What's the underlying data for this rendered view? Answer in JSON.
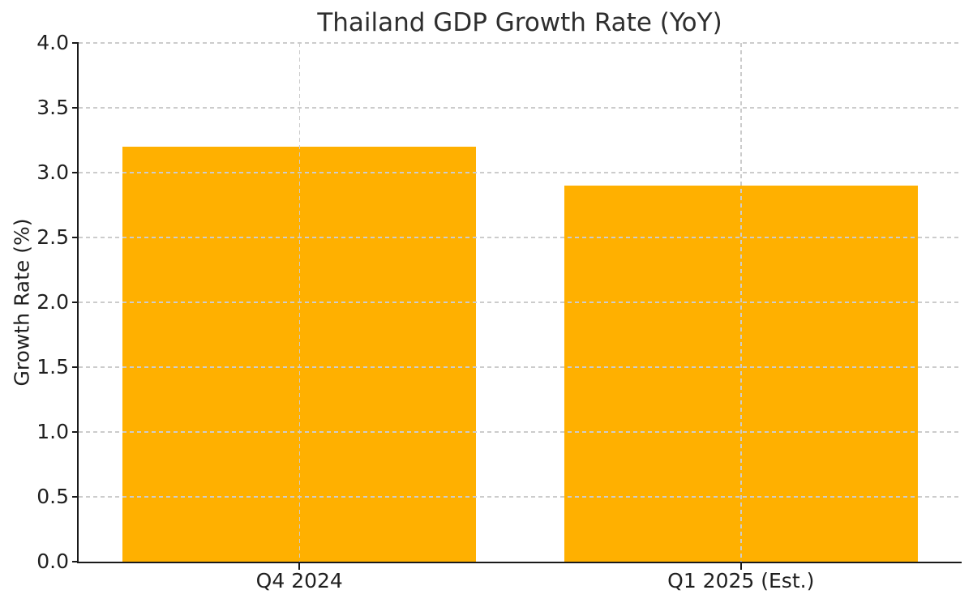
{
  "title": "Thailand GDP Growth Rate (YoY)",
  "chart_data": {
    "type": "bar",
    "title": "Thailand GDP Growth Rate (YoY)",
    "categories": [
      "Q4 2024",
      "Q1 2025 (Est.)"
    ],
    "values": [
      3.2,
      2.9
    ],
    "xlabel": "",
    "ylabel": "Growth Rate (%)",
    "ylim": [
      0,
      4
    ],
    "ytick_labels": [
      "0.0",
      "0.5",
      "1.0",
      "1.5",
      "2.0",
      "2.5",
      "3.0",
      "3.5",
      "4.0"
    ],
    "bar_color": "#FFB000",
    "grid": true,
    "grid_style": "dashed",
    "grid_color": "#cccccc",
    "axis_color": "#1a1a1a",
    "legend": "none",
    "bar_width_fraction": 0.8
  }
}
